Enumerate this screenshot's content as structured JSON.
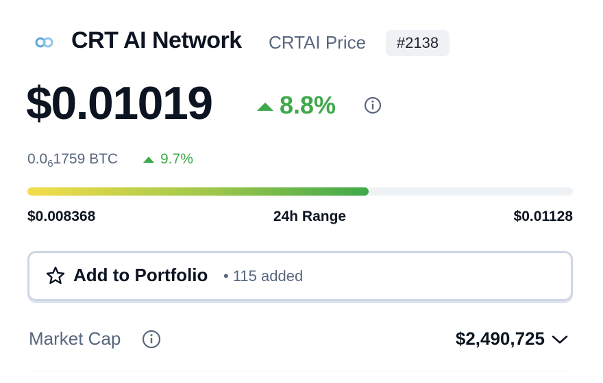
{
  "header": {
    "name": "CRT AI Network",
    "symbol": "CRTAI Price",
    "rank": "#2138"
  },
  "price": {
    "value": "$0.01019",
    "change_24h": "8.8%"
  },
  "btc_price": {
    "lead": "0.0",
    "zeros": "6",
    "digits": "1759 BTC",
    "change": "9.7%"
  },
  "price_range": {
    "low": "$0.008368",
    "label": "24h Range",
    "high": "$0.01128"
  },
  "portfolio": {
    "button": "Add to Portfolio",
    "separator": "•",
    "added": "115 added"
  },
  "stats": {
    "market_cap": {
      "label": "Market Cap",
      "value": "$2,490,725"
    }
  }
}
